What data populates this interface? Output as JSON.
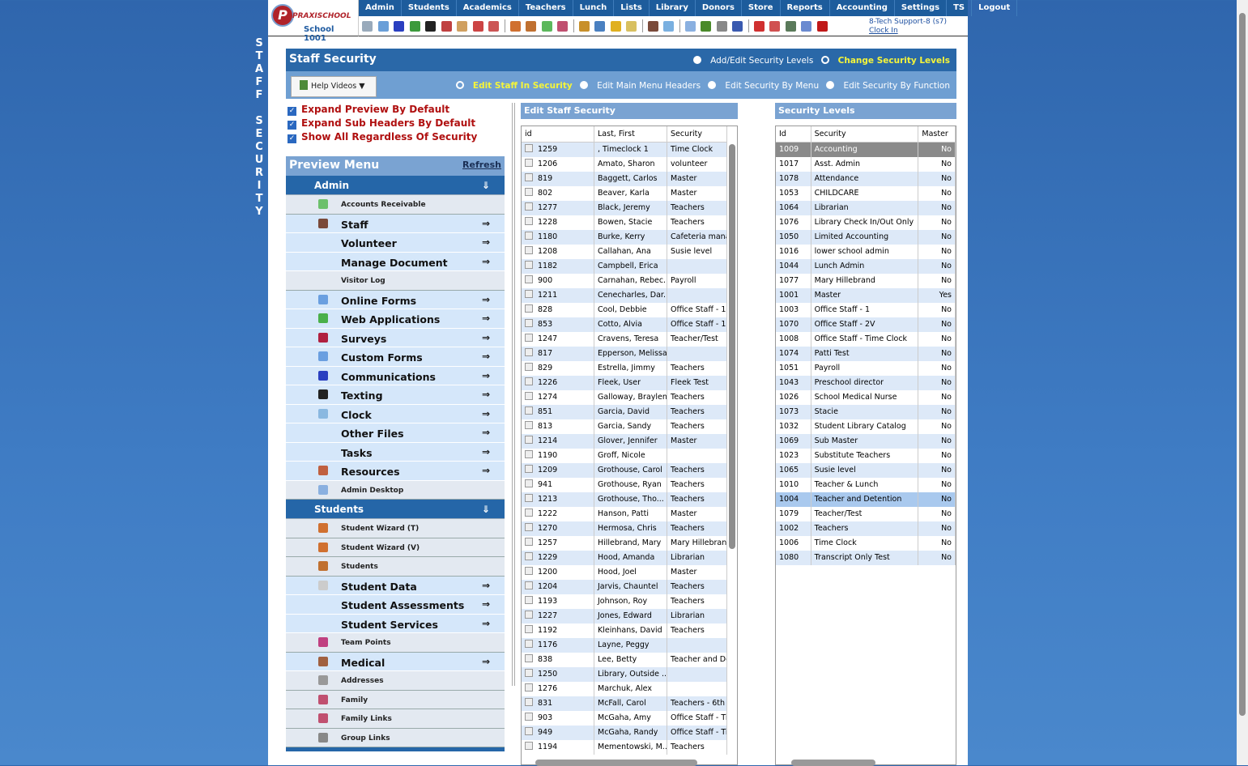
{
  "side_title": "STAFF SECURITY",
  "logo": {
    "brand": "PRAXISCHOOL",
    "school": "School 1001"
  },
  "nav": [
    "Admin",
    "Students",
    "Academics",
    "Teachers",
    "Lunch",
    "Lists",
    "Library",
    "Donors",
    "Store",
    "Reports",
    "Accounting",
    "Settings",
    "TS",
    "Logout"
  ],
  "toolbar_icons": [
    {
      "name": "search-icon",
      "color": "#9ab"
    },
    {
      "name": "calendar-grid-icon",
      "color": "#6a9fd8"
    },
    {
      "name": "at-email-icon",
      "color": "#2a3fc0"
    },
    {
      "name": "chat-icon",
      "color": "#3c9a3c"
    },
    {
      "name": "phone-icon",
      "color": "#222"
    },
    {
      "name": "flag-icon",
      "color": "#c04040"
    },
    {
      "name": "form-icon",
      "color": "#d0a060"
    },
    {
      "name": "calendar-icon",
      "color": "#c44"
    },
    {
      "name": "megaphone-icon",
      "color": "#c55"
    },
    {
      "sep": true
    },
    {
      "name": "add-user-icon",
      "color": "#d07030"
    },
    {
      "name": "user-icon",
      "color": "#c07030"
    },
    {
      "name": "money-icon",
      "color": "#5cb85c"
    },
    {
      "name": "family-icon",
      "color": "#c05070"
    },
    {
      "sep": true
    },
    {
      "name": "burger-icon",
      "color": "#c8902a"
    },
    {
      "name": "book-icon",
      "color": "#4a80c0"
    },
    {
      "name": "broom-icon",
      "color": "#e0b020"
    },
    {
      "name": "export-icon",
      "color": "#d8c060"
    },
    {
      "sep": true
    },
    {
      "name": "staff-icon",
      "color": "#7a4a3a"
    },
    {
      "name": "clock-icon",
      "color": "#7ab0e0"
    },
    {
      "sep": true
    },
    {
      "name": "list-icon",
      "color": "#8ab0e0"
    },
    {
      "name": "card-icon",
      "color": "#4a8a2a"
    },
    {
      "name": "printer-icon",
      "color": "#888"
    },
    {
      "name": "ap-icon",
      "color": "#3a5ab0"
    },
    {
      "sep": true
    },
    {
      "name": "pdf-icon",
      "color": "#d03030"
    },
    {
      "name": "pdf-export-icon",
      "color": "#d05050"
    },
    {
      "name": "cash-register-icon",
      "color": "#5a7a5a"
    },
    {
      "name": "help-icon",
      "color": "#6a8ad0"
    },
    {
      "name": "power-icon",
      "color": "#c01818"
    }
  ],
  "user": {
    "name": "8-Tech Support-8 (s7)",
    "clock_in": "Clock In"
  },
  "page": {
    "title": "Staff Security",
    "top_radios": [
      {
        "label": "Add/Edit Security Levels",
        "selected": false
      },
      {
        "label": "Change Security Levels",
        "selected": true
      }
    ],
    "help_videos": "Help Videos ▼",
    "sub_radios": [
      {
        "label": "Edit Staff In Security",
        "selected": true
      },
      {
        "label": "Edit Main Menu Headers",
        "selected": false
      },
      {
        "label": "Edit Security By Menu",
        "selected": false
      },
      {
        "label": "Edit Security By Function",
        "selected": false
      }
    ]
  },
  "options": [
    {
      "label": "Expand Preview By Default",
      "checked": true
    },
    {
      "label": "Expand Sub Headers By Default",
      "checked": true
    },
    {
      "label": "Show All Regardless Of Security",
      "checked": true
    }
  ],
  "preview": {
    "title": "Preview Menu",
    "refresh": "Refresh",
    "sections": [
      {
        "label": "Admin",
        "items": [
          {
            "label": "Accounts Receivable",
            "type": "s",
            "icon": "money-icon",
            "color": "#6cc06c"
          },
          {
            "label": "Staff",
            "type": "b",
            "icon": "staff-icon",
            "color": "#7a4a3a"
          },
          {
            "label": "Volunteer",
            "type": "b"
          },
          {
            "label": "Manage Document",
            "type": "b"
          },
          {
            "label": "Visitor Log",
            "type": "s"
          },
          {
            "label": "Online Forms",
            "type": "b",
            "icon": "html-icon",
            "color": "#6a9fe0"
          },
          {
            "label": "Web Applications",
            "type": "b",
            "icon": "globe-icon",
            "color": "#4ab04a"
          },
          {
            "label": "Surveys",
            "type": "b",
            "icon": "survey-icon",
            "color": "#b02040"
          },
          {
            "label": "Custom Forms",
            "type": "b",
            "icon": "html-icon",
            "color": "#6a9fe0"
          },
          {
            "label": "Communications",
            "type": "b",
            "icon": "at-email-icon",
            "color": "#2a3fc0"
          },
          {
            "label": "Texting",
            "type": "b",
            "icon": "phone-icon",
            "color": "#222"
          },
          {
            "label": "Clock",
            "type": "b",
            "icon": "clock-icon",
            "color": "#8ab8e0"
          },
          {
            "label": "Other Files",
            "type": "b"
          },
          {
            "label": "Tasks",
            "type": "b"
          },
          {
            "label": "Resources",
            "type": "b",
            "icon": "resources-icon",
            "color": "#c06040"
          },
          {
            "label": "Admin Desktop",
            "type": "s",
            "icon": "desktop-icon",
            "color": "#8ab0e0"
          }
        ]
      },
      {
        "label": "Students",
        "items": [
          {
            "label": "Student Wizard (T)",
            "type": "s",
            "icon": "add-user-icon",
            "color": "#d07030"
          },
          {
            "label": "Student Wizard (V)",
            "type": "s",
            "icon": "add-user-icon",
            "color": "#d07030"
          },
          {
            "label": "Students",
            "type": "s",
            "icon": "user-icon",
            "color": "#c07030"
          },
          {
            "label": "Student Data",
            "type": "b",
            "icon": "database-icon",
            "color": "#ccc"
          },
          {
            "label": "Student Assessments",
            "type": "b"
          },
          {
            "label": "Student Services",
            "type": "b"
          },
          {
            "label": "Team Points",
            "type": "s",
            "icon": "team-icon",
            "color": "#c04080"
          },
          {
            "label": "Medical",
            "type": "b",
            "icon": "medical-icon",
            "color": "#a06040"
          },
          {
            "label": "Addresses",
            "type": "s",
            "icon": "address-icon",
            "color": "#999"
          },
          {
            "label": "Family",
            "type": "s",
            "icon": "family-icon",
            "color": "#c05070"
          },
          {
            "label": "Family Links",
            "type": "s",
            "icon": "family-icon",
            "color": "#c05070"
          },
          {
            "label": "Group Links",
            "type": "s",
            "icon": "group-icon",
            "color": "#888"
          }
        ]
      }
    ]
  },
  "staff_grid": {
    "title": "Edit Staff Security",
    "columns": [
      "id",
      "Last, First",
      "Security"
    ],
    "rows": [
      [
        "1259",
        ", Timeclock 1",
        "Time Clock"
      ],
      [
        "1206",
        "Amato, Sharon",
        "volunteer"
      ],
      [
        "819",
        "Baggett, Carlos",
        "Master"
      ],
      [
        "802",
        "Beaver, Karla",
        "Master"
      ],
      [
        "1277",
        "Black, Jeremy",
        "Teachers"
      ],
      [
        "1228",
        "Bowen, Stacie",
        "Teachers"
      ],
      [
        "1180",
        "Burke, Kerry",
        "Cafeteria mana"
      ],
      [
        "1208",
        "Callahan, Ana",
        "Susie level"
      ],
      [
        "1182",
        "Campbell, Erica",
        ""
      ],
      [
        "900",
        "Carnahan, Rebec...",
        "Payroll"
      ],
      [
        "1211",
        "Cenecharles, Dar...",
        ""
      ],
      [
        "828",
        "Cool, Debbie",
        "Office Staff - 1"
      ],
      [
        "853",
        "Cotto, Alvia",
        "Office Staff - 1"
      ],
      [
        "1247",
        "Cravens, Teresa",
        "Teacher/Test"
      ],
      [
        "817",
        "Epperson, Melissa",
        ""
      ],
      [
        "829",
        "Estrella, Jimmy",
        "Teachers"
      ],
      [
        "1226",
        "Fleek, User",
        "Fleek Test"
      ],
      [
        "1274",
        "Galloway, Braylen",
        "Teachers"
      ],
      [
        "851",
        "Garcia, David",
        "Teachers"
      ],
      [
        "813",
        "Garcia, Sandy",
        "Teachers"
      ],
      [
        "1214",
        "Glover, Jennifer",
        "Master"
      ],
      [
        "1190",
        "Groff, Nicole",
        ""
      ],
      [
        "1209",
        "Grothouse, Carol",
        "Teachers"
      ],
      [
        "941",
        "Grothouse, Ryan",
        "Teachers"
      ],
      [
        "1213",
        "Grothouse, Tho...",
        "Teachers"
      ],
      [
        "1222",
        "Hanson, Patti",
        "Master"
      ],
      [
        "1270",
        "Hermosa, Chris",
        "Teachers"
      ],
      [
        "1257",
        "Hillebrand, Mary",
        "Mary Hillebrand"
      ],
      [
        "1229",
        "Hood, Amanda",
        "Librarian"
      ],
      [
        "1200",
        "Hood, Joel",
        "Master"
      ],
      [
        "1204",
        "Jarvis, Chauntel",
        "Teachers"
      ],
      [
        "1193",
        "Johnson, Roy",
        "Teachers"
      ],
      [
        "1227",
        "Jones, Edward",
        "Librarian"
      ],
      [
        "1192",
        "Kleinhans, David",
        "Teachers"
      ],
      [
        "1176",
        "Layne, Peggy",
        ""
      ],
      [
        "838",
        "Lee, Betty",
        "Teacher and De"
      ],
      [
        "1250",
        "Library, Outside ...",
        ""
      ],
      [
        "1276",
        "Marchuk, Alex",
        ""
      ],
      [
        "831",
        "McFall, Carol",
        "Teachers - 6th g"
      ],
      [
        "903",
        "McGaha, Amy",
        "Office Staff - Ti"
      ],
      [
        "949",
        "McGaha, Randy",
        "Office Staff - Ti"
      ],
      [
        "1194",
        "Mementowski, M...",
        "Teachers"
      ]
    ]
  },
  "levels_grid": {
    "title": "Security Levels",
    "columns": [
      "Id",
      "Security",
      "Master"
    ],
    "selected_id": "1009",
    "hover_id": "1004",
    "rows": [
      [
        "1009",
        "Accounting",
        "No"
      ],
      [
        "1017",
        "Asst. Admin",
        "No"
      ],
      [
        "1078",
        "Attendance",
        "No"
      ],
      [
        "1053",
        "CHILDCARE",
        "No"
      ],
      [
        "1064",
        "Librarian",
        "No"
      ],
      [
        "1076",
        "Library Check In/Out Only",
        "No"
      ],
      [
        "1050",
        "Limited Accounting",
        "No"
      ],
      [
        "1016",
        "lower school admin",
        "No"
      ],
      [
        "1044",
        "Lunch Admin",
        "No"
      ],
      [
        "1077",
        "Mary Hillebrand",
        "No"
      ],
      [
        "1001",
        "Master",
        "Yes"
      ],
      [
        "1003",
        "Office Staff - 1",
        "No"
      ],
      [
        "1070",
        "Office Staff - 2V",
        "No"
      ],
      [
        "1008",
        "Office Staff - Time Clock",
        "No"
      ],
      [
        "1074",
        "Patti Test",
        "No"
      ],
      [
        "1051",
        "Payroll",
        "No"
      ],
      [
        "1043",
        "Preschool director",
        "No"
      ],
      [
        "1026",
        "School Medical Nurse",
        "No"
      ],
      [
        "1073",
        "Stacie",
        "No"
      ],
      [
        "1032",
        "Student Library Catalog",
        "No"
      ],
      [
        "1069",
        "Sub Master",
        "No"
      ],
      [
        "1023",
        "Substitute Teachers",
        "No"
      ],
      [
        "1065",
        "Susie level",
        "No"
      ],
      [
        "1010",
        "Teacher & Lunch",
        "No"
      ],
      [
        "1004",
        "Teacher and Detention",
        "No"
      ],
      [
        "1079",
        "Teacher/Test",
        "No"
      ],
      [
        "1002",
        "Teachers",
        "No"
      ],
      [
        "1006",
        "Time Clock",
        "No"
      ],
      [
        "1080",
        "Transcript Only Test",
        "No"
      ]
    ]
  }
}
